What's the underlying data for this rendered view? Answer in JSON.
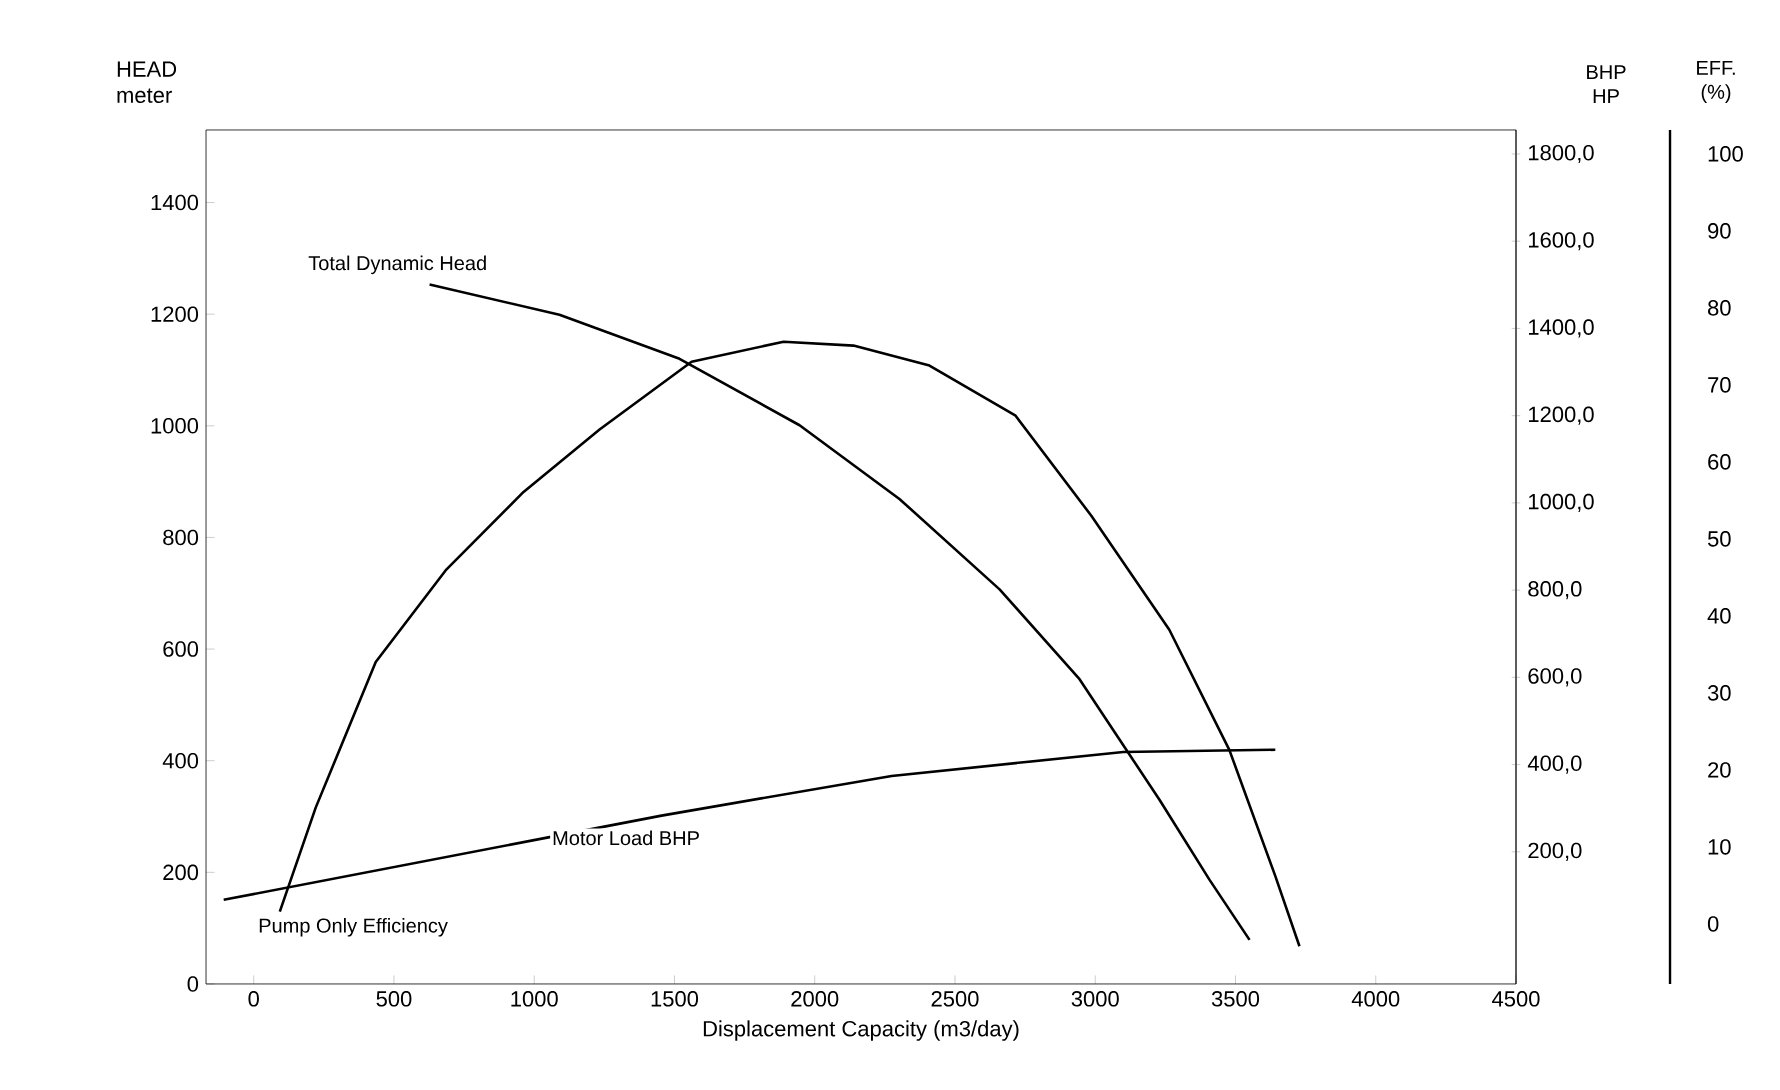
{
  "chart_data": {
    "type": "line",
    "xlabel": "Displacement Capacity (m3/day)",
    "ylabel": "HEAD meter",
    "y2label": "BHP HP",
    "y3label": "EFF. (%)",
    "xlim": [
      -170,
      4500
    ],
    "xticks": [
      0,
      500,
      1000,
      1500,
      2000,
      2500,
      3000,
      3500,
      4000,
      4500
    ],
    "ylim": [
      0,
      1530
    ],
    "yticks": [
      0,
      200,
      400,
      600,
      800,
      1000,
      1200,
      1400
    ],
    "y2lim": [
      -103,
      1855
    ],
    "y2ticks": [
      {
        "value": 200,
        "label": "200,0"
      },
      {
        "value": 400,
        "label": "400,0"
      },
      {
        "value": 600,
        "label": "600,0"
      },
      {
        "value": 800,
        "label": "800,0"
      },
      {
        "value": 1000,
        "label": "1000,0"
      },
      {
        "value": 1200,
        "label": "1200,0"
      },
      {
        "value": 1400,
        "label": "1400,0"
      },
      {
        "value": 1600,
        "label": "1600,0"
      },
      {
        "value": 1800,
        "label": "1800,0"
      }
    ],
    "y3lim": [
      -7.8,
      103.1
    ],
    "y3ticks": [
      0,
      10,
      20,
      30,
      40,
      50,
      60,
      70,
      80,
      90,
      100
    ],
    "grid": false,
    "marker": "none",
    "line_style": "solid",
    "series": [
      {
        "name": "Total Dynamic Head",
        "color": "#000000",
        "axis": "y",
        "x": [
          627,
          1090,
          1518,
          1946,
          2302,
          2659,
          2944,
          3229,
          3407,
          3550
        ],
        "values": [
          1253,
          1199,
          1120,
          1001,
          869,
          707,
          546,
          330,
          187,
          79
        ]
      },
      {
        "name": "Motor Load BHP",
        "color": "#000000",
        "axis": "y2",
        "x": [
          -107,
          1041,
          1454,
          2274,
          3100,
          3642
        ],
        "values": [
          90,
          232,
          283,
          374,
          429,
          434
        ]
      },
      {
        "name": "Pump Only Efficiency",
        "color": "#000000",
        "axis": "y3",
        "x": [
          93,
          221,
          435,
          684,
          962,
          1233,
          1561,
          1889,
          2138,
          2409,
          2716,
          2986,
          3264,
          3478,
          3642,
          3728
        ],
        "values": [
          1.6,
          15.1,
          34.0,
          45.9,
          56.1,
          64.2,
          73.0,
          75.6,
          75.1,
          72.5,
          66.0,
          53.0,
          38.2,
          22.6,
          6.2,
          -2.9
        ]
      }
    ]
  }
}
